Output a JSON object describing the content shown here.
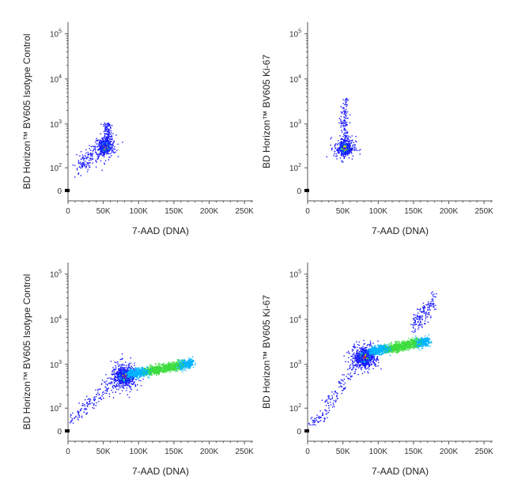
{
  "chart_data": [
    {
      "type": "scatter",
      "panel": "top-left",
      "xlabel": "7-AAD (DNA)",
      "ylabel": "BD Horizon™ BV605 Isotype Control",
      "x_ticks": [
        "0",
        "50K",
        "100K",
        "150K",
        "200K",
        "250K"
      ],
      "x_tick_values": [
        0,
        50000,
        100000,
        150000,
        200000,
        250000
      ],
      "y_ticks": [
        "0",
        "10^2",
        "10^3",
        "10^4",
        "10^5"
      ],
      "xlim": [
        0,
        262144
      ],
      "ylim": [
        -30,
        150000
      ],
      "y_scale": "biexponential",
      "populations": [
        {
          "label": "G0/G1",
          "x": 52000,
          "y": 310,
          "density": "high"
        },
        {
          "label": "diagonal tail",
          "x": [
            10000,
            50000
          ],
          "y": [
            100,
            300
          ],
          "density": "low"
        },
        {
          "label": "upper scatter",
          "x": 55000,
          "y": [
            400,
            1100
          ],
          "density": "low"
        }
      ]
    },
    {
      "type": "scatter",
      "panel": "top-right",
      "xlabel": "7-AAD (DNA)",
      "ylabel": "BD Horizon™ BV605 Ki-67",
      "x_ticks": [
        "0",
        "50K",
        "100K",
        "150K",
        "200K",
        "250K"
      ],
      "x_tick_values": [
        0,
        50000,
        100000,
        150000,
        200000,
        250000
      ],
      "y_ticks": [
        "0",
        "10^2",
        "10^3",
        "10^4",
        "10^5"
      ],
      "xlim": [
        0,
        262144
      ],
      "ylim": [
        -30,
        150000
      ],
      "y_scale": "biexponential",
      "populations": [
        {
          "label": "G0/G1",
          "x": 52000,
          "y": 290,
          "density": "high"
        },
        {
          "label": "vertical spread",
          "x": 52000,
          "y": [
            400,
            4000
          ],
          "density": "low"
        }
      ]
    },
    {
      "type": "scatter",
      "panel": "bottom-left",
      "xlabel": "7-AAD (DNA)",
      "ylabel": "BD Horizon™ BV605 Isotype Control",
      "x_ticks": [
        "0",
        "50K",
        "100K",
        "150K",
        "200K",
        "250K"
      ],
      "x_tick_values": [
        0,
        50000,
        100000,
        150000,
        200000,
        250000
      ],
      "y_ticks": [
        "0",
        "10^2",
        "10^3",
        "10^4",
        "10^5"
      ],
      "xlim": [
        0,
        262144
      ],
      "ylim": [
        -30,
        150000
      ],
      "y_scale": "biexponential",
      "populations": [
        {
          "label": "G0/G1",
          "x": 80000,
          "y": 550,
          "density": "high"
        },
        {
          "label": "S/G2M band",
          "x": [
            85000,
            175000
          ],
          "y": [
            600,
            1100
          ],
          "density": "medium"
        },
        {
          "label": "low tail",
          "x": [
            0,
            70000
          ],
          "y": [
            50,
            500
          ],
          "density": "low"
        }
      ]
    },
    {
      "type": "scatter",
      "panel": "bottom-right",
      "xlabel": "7-AAD (DNA)",
      "ylabel": "BD Horizon™ BV605 Ki-67",
      "x_ticks": [
        "0",
        "50K",
        "100K",
        "150K",
        "200K",
        "250K"
      ],
      "x_tick_values": [
        0,
        50000,
        100000,
        150000,
        200000,
        250000
      ],
      "y_ticks": [
        "0",
        "10^2",
        "10^3",
        "10^4",
        "10^5"
      ],
      "xlim": [
        0,
        262144
      ],
      "ylim": [
        -30,
        150000
      ],
      "y_scale": "biexponential",
      "populations": [
        {
          "label": "G0/G1",
          "x": 80000,
          "y": 1500,
          "density": "high"
        },
        {
          "label": "S/G2M band",
          "x": [
            90000,
            170000
          ],
          "y": [
            2000,
            3500
          ],
          "density": "medium"
        },
        {
          "label": "high Ki-67",
          "x": [
            150000,
            180000
          ],
          "y": [
            8000,
            30000
          ],
          "density": "low"
        },
        {
          "label": "low tail",
          "x": [
            0,
            70000
          ],
          "y": [
            30,
            1000
          ],
          "density": "low"
        }
      ]
    }
  ],
  "colors": {
    "sparse": "#1a1aff",
    "low": "#00b4ff",
    "mid": "#3cdc3c",
    "high": "#ffdc00",
    "peak": "#ff2a00"
  }
}
